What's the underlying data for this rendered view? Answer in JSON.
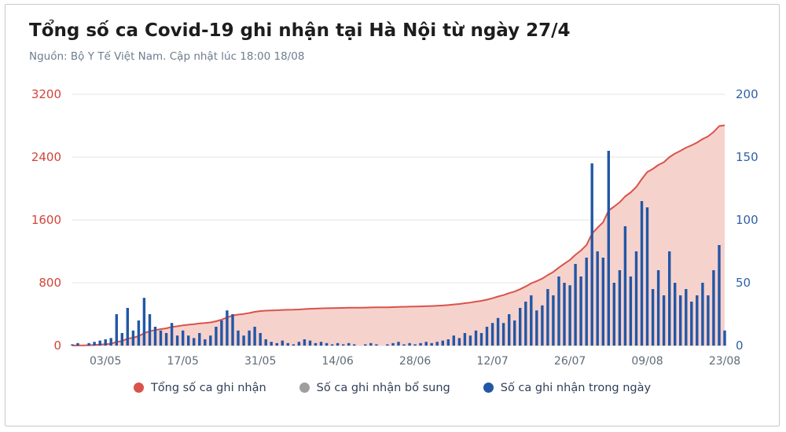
{
  "card": {
    "title": "Tổng số ca Covid-19 ghi nhận tại Hà Nội từ ngày 27/4",
    "subtitle": "Nguồn: Bộ Y Tế Việt Nam. Cập nhật lúc 18:00 18/08"
  },
  "chart_data": {
    "type": "combo",
    "title": "Tổng số ca Covid-19 ghi nhận tại Hà Nội từ ngày 27/4",
    "subtitle": "Nguồn: Bộ Y Tế Việt Nam. Cập nhật lúc 18:00 18/08",
    "grid": true,
    "legend_position": "bottom",
    "x": [
      "27/04",
      "28/04",
      "29/04",
      "30/04",
      "01/05",
      "02/05",
      "03/05",
      "04/05",
      "05/05",
      "06/05",
      "07/05",
      "08/05",
      "09/05",
      "10/05",
      "11/05",
      "12/05",
      "13/05",
      "14/05",
      "15/05",
      "16/05",
      "17/05",
      "18/05",
      "19/05",
      "20/05",
      "21/05",
      "22/05",
      "23/05",
      "24/05",
      "25/05",
      "26/05",
      "27/05",
      "28/05",
      "29/05",
      "30/05",
      "31/05",
      "01/06",
      "02/06",
      "03/06",
      "04/06",
      "05/06",
      "06/06",
      "07/06",
      "08/06",
      "09/06",
      "10/06",
      "11/06",
      "12/06",
      "13/06",
      "14/06",
      "15/06",
      "16/06",
      "17/06",
      "18/06",
      "19/06",
      "20/06",
      "21/06",
      "22/06",
      "23/06",
      "24/06",
      "25/06",
      "26/06",
      "27/06",
      "28/06",
      "29/06",
      "30/06",
      "01/07",
      "02/07",
      "03/07",
      "04/07",
      "05/07",
      "06/07",
      "07/07",
      "08/07",
      "09/07",
      "10/07",
      "11/07",
      "12/07",
      "13/07",
      "14/07",
      "15/07",
      "16/07",
      "17/07",
      "18/07",
      "19/07",
      "20/07",
      "21/07",
      "22/07",
      "23/07",
      "24/07",
      "25/07",
      "26/07",
      "27/07",
      "28/07",
      "29/07",
      "30/07",
      "31/07",
      "01/08",
      "02/08",
      "03/08",
      "04/08",
      "05/08",
      "06/08",
      "07/08",
      "08/08",
      "09/08",
      "10/08",
      "11/08",
      "12/08",
      "13/08",
      "14/08",
      "15/08",
      "16/08",
      "17/08",
      "18/08",
      "19/08",
      "20/08",
      "21/08",
      "22/08",
      "23/08"
    ],
    "x_tick_labels": [
      "03/05",
      "17/05",
      "31/05",
      "14/06",
      "28/06",
      "12/07",
      "26/07",
      "09/08",
      "23/08"
    ],
    "left_axis": {
      "ticks": [
        0,
        800,
        1600,
        2400,
        3200
      ],
      "max": 3200,
      "color": "#d2443a"
    },
    "right_axis": {
      "ticks": [
        0,
        50,
        100,
        150,
        200
      ],
      "max": 200,
      "color": "#2f5fa8"
    },
    "series": [
      {
        "key": "total-cumulative",
        "name": "Tổng số ca ghi nhận",
        "type": "area",
        "axis": "left",
        "color": "#d9534a",
        "fill": "#f6d2cd",
        "values": [
          1,
          3,
          3,
          5,
          8,
          12,
          17,
          23,
          48,
          58,
          88,
          100,
          120,
          158,
          183,
          198,
          210,
          220,
          238,
          246,
          258,
          266,
          272,
          282,
          287,
          295,
          310,
          330,
          358,
          383,
          395,
          403,
          415,
          430,
          440,
          445,
          448,
          450,
          454,
          456,
          457,
          460,
          465,
          469,
          471,
          474,
          476,
          477,
          479,
          480,
          482,
          483,
          483,
          484,
          486,
          487,
          487,
          488,
          490,
          493,
          494,
          496,
          497,
          499,
          502,
          504,
          507,
          511,
          516,
          524,
          530,
          540,
          548,
          560,
          570,
          585,
          603,
          625,
          643,
          668,
          688,
          718,
          753,
          793,
          821,
          853,
          898,
          938,
          993,
          1043,
          1091,
          1156,
          1211,
          1281,
          1426,
          1501,
          1570,
          1720,
          1770,
          1825,
          1900,
          1950,
          2020,
          2120,
          2210,
          2250,
          2300,
          2335,
          2400,
          2445,
          2480,
          2520,
          2550,
          2585,
          2630,
          2665,
          2720,
          2795,
          2805
        ]
      },
      {
        "key": "supplementary-daily",
        "name": "Số ca ghi nhận bổ sung",
        "type": "bar",
        "axis": "right",
        "color": "#9e9e9e",
        "values": [],
        "constant": 0
      },
      {
        "key": "in-day-daily",
        "name": "Số ca ghi nhận trong ngày",
        "type": "bar",
        "axis": "right",
        "color": "#2257a5",
        "values": [
          1,
          2,
          0,
          2,
          3,
          4,
          5,
          6,
          25,
          10,
          30,
          12,
          20,
          38,
          25,
          15,
          12,
          10,
          18,
          8,
          12,
          8,
          6,
          10,
          5,
          8,
          15,
          20,
          28,
          25,
          12,
          8,
          12,
          15,
          10,
          5,
          3,
          2,
          4,
          2,
          1,
          3,
          5,
          4,
          2,
          3,
          2,
          1,
          2,
          1,
          2,
          1,
          0,
          1,
          2,
          1,
          0,
          1,
          2,
          3,
          1,
          2,
          1,
          2,
          3,
          2,
          3,
          4,
          5,
          8,
          6,
          10,
          8,
          12,
          10,
          15,
          18,
          22,
          18,
          25,
          20,
          30,
          35,
          40,
          28,
          32,
          45,
          40,
          55,
          50,
          48,
          65,
          55,
          70,
          145,
          75,
          70,
          155,
          50,
          60,
          95,
          55,
          75,
          115,
          110,
          45,
          60,
          40,
          75,
          50,
          40,
          45,
          35,
          40,
          50,
          40,
          60,
          80,
          12
        ]
      }
    ]
  }
}
